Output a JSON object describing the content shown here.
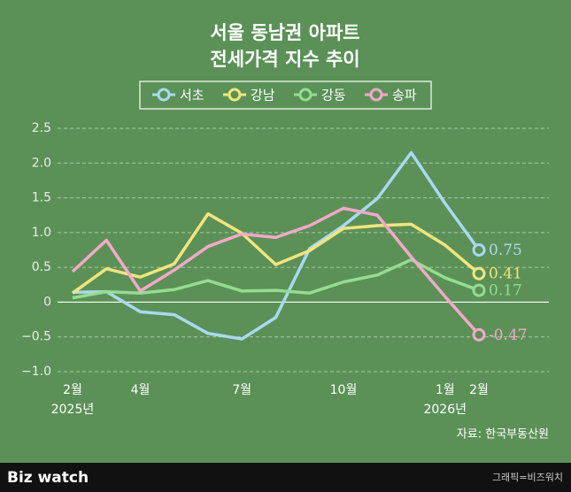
{
  "chart_data": {
    "type": "line",
    "title": "서울 동남권 아파트",
    "subtitle": "전세가격 지수 추이",
    "categories": [
      "2월",
      null,
      "4월",
      null,
      null,
      "7월",
      null,
      null,
      "10월",
      null,
      null,
      "1월",
      "2월"
    ],
    "category_years": [
      "2025년",
      null,
      null,
      null,
      null,
      null,
      null,
      null,
      null,
      null,
      null,
      "2026년",
      null
    ],
    "series": [
      {
        "name": "서초",
        "color": "#a9d9f2",
        "values": [
          0.14,
          0.15,
          -0.14,
          -0.18,
          -0.45,
          -0.53,
          -0.22,
          0.77,
          1.1,
          1.49,
          2.15,
          1.42,
          0.75
        ]
      },
      {
        "name": "강남",
        "color": "#f3e57c",
        "values": [
          0.13,
          0.48,
          0.36,
          0.55,
          1.27,
          0.99,
          0.54,
          0.74,
          1.06,
          1.1,
          1.12,
          0.82,
          0.41
        ]
      },
      {
        "name": "강동",
        "color": "#93dd92",
        "values": [
          0.06,
          0.15,
          0.13,
          0.18,
          0.31,
          0.16,
          0.17,
          0.13,
          0.29,
          0.39,
          0.61,
          0.35,
          0.17
        ]
      },
      {
        "name": "송파",
        "color": "#f3a9c9",
        "values": [
          0.44,
          0.89,
          0.16,
          0.46,
          0.8,
          0.98,
          0.93,
          1.1,
          1.35,
          1.25,
          0.65,
          0.08,
          -0.47
        ]
      }
    ],
    "end_labels": true,
    "ylim": [
      -1,
      2.5
    ],
    "yticks": [
      -1.0,
      -0.5,
      0,
      0.5,
      1.0,
      1.5,
      2.0,
      2.5
    ],
    "ytick_labels": [
      "−1.0",
      "−0.5",
      "0",
      "0.5",
      "1.0",
      "1.5",
      "2.0",
      "2.5"
    ],
    "grid": true,
    "source": "자료: 한국부동산원"
  },
  "footer": {
    "brand": "Biz watch",
    "credit": "그래픽=비즈워치"
  }
}
